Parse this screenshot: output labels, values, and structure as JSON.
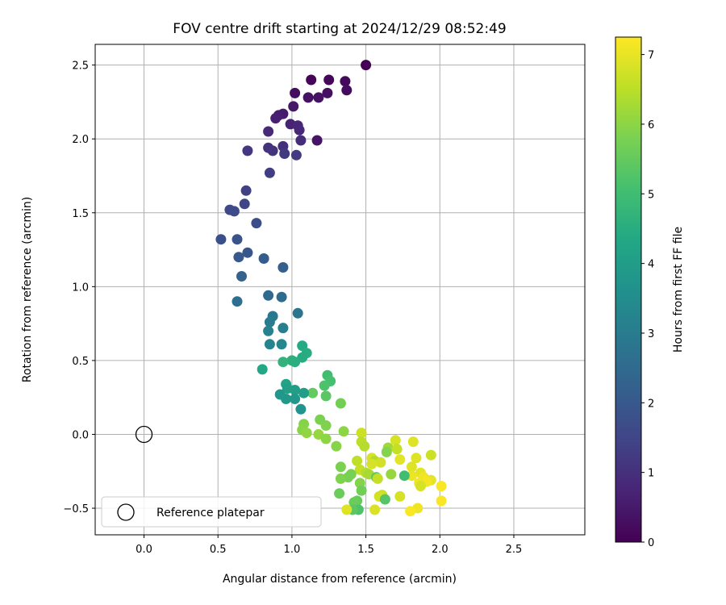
{
  "chart_data": {
    "type": "scatter",
    "title": "FOV centre drift starting at 2024/12/29 08:52:49",
    "xlabel": "Angular distance from reference (arcmin)",
    "ylabel": "Rotation from reference (arcmin)",
    "xlim": [
      -0.33,
      2.98
    ],
    "ylim": [
      -0.68,
      2.64
    ],
    "xticks": [
      0.0,
      0.5,
      1.0,
      1.5,
      2.0,
      2.5
    ],
    "xtick_labels": [
      "0.0",
      "0.5",
      "1.0",
      "1.5",
      "2.0",
      "2.5"
    ],
    "yticks": [
      -0.5,
      0.0,
      0.5,
      1.0,
      1.5,
      2.0,
      2.5
    ],
    "ytick_labels": [
      "−0.5",
      "0.0",
      "0.5",
      "1.0",
      "1.5",
      "2.0",
      "2.5"
    ],
    "grid": true,
    "colormap": "viridis",
    "colorbar": {
      "label": "Hours from first FF file",
      "range": [
        0,
        7.25
      ],
      "ticks": [
        0,
        1,
        2,
        3,
        4,
        5,
        6,
        7
      ],
      "tick_labels": [
        "0",
        "1",
        "2",
        "3",
        "4",
        "5",
        "6",
        "7"
      ]
    },
    "reference": {
      "name": "Reference platepar",
      "x": 0.0,
      "y": 0.0
    },
    "legend": {
      "placement": "lower-left",
      "entries": [
        "Reference platepar"
      ]
    },
    "points": [
      {
        "x": 1.5,
        "y": 2.5,
        "t": 0.0
      },
      {
        "x": 1.13,
        "y": 2.4,
        "t": 0.08
      },
      {
        "x": 1.25,
        "y": 2.4,
        "t": 0.12
      },
      {
        "x": 1.36,
        "y": 2.39,
        "t": 0.16
      },
      {
        "x": 1.37,
        "y": 2.33,
        "t": 0.2
      },
      {
        "x": 1.02,
        "y": 2.31,
        "t": 0.24
      },
      {
        "x": 1.24,
        "y": 2.31,
        "t": 0.28
      },
      {
        "x": 1.11,
        "y": 2.28,
        "t": 0.32
      },
      {
        "x": 1.18,
        "y": 2.28,
        "t": 0.36
      },
      {
        "x": 1.17,
        "y": 1.99,
        "t": 0.4
      },
      {
        "x": 1.01,
        "y": 2.22,
        "t": 0.46
      },
      {
        "x": 0.94,
        "y": 2.17,
        "t": 0.52
      },
      {
        "x": 0.91,
        "y": 2.16,
        "t": 0.58
      },
      {
        "x": 0.89,
        "y": 2.14,
        "t": 0.64
      },
      {
        "x": 0.99,
        "y": 2.1,
        "t": 0.7
      },
      {
        "x": 1.04,
        "y": 2.09,
        "t": 0.76
      },
      {
        "x": 1.05,
        "y": 2.06,
        "t": 0.82
      },
      {
        "x": 0.84,
        "y": 2.05,
        "t": 0.88
      },
      {
        "x": 1.06,
        "y": 1.99,
        "t": 0.94
      },
      {
        "x": 0.94,
        "y": 1.95,
        "t": 1.0
      },
      {
        "x": 0.84,
        "y": 1.94,
        "t": 1.05
      },
      {
        "x": 0.87,
        "y": 1.92,
        "t": 1.1
      },
      {
        "x": 0.7,
        "y": 1.92,
        "t": 1.15
      },
      {
        "x": 0.95,
        "y": 1.9,
        "t": 1.2
      },
      {
        "x": 1.03,
        "y": 1.89,
        "t": 1.25
      },
      {
        "x": 0.85,
        "y": 1.77,
        "t": 1.32
      },
      {
        "x": 0.69,
        "y": 1.65,
        "t": 1.4
      },
      {
        "x": 0.68,
        "y": 1.56,
        "t": 1.48
      },
      {
        "x": 0.58,
        "y": 1.52,
        "t": 1.56
      },
      {
        "x": 0.61,
        "y": 1.51,
        "t": 1.62
      },
      {
        "x": 0.76,
        "y": 1.43,
        "t": 1.7
      },
      {
        "x": 0.52,
        "y": 1.32,
        "t": 1.78
      },
      {
        "x": 0.63,
        "y": 1.32,
        "t": 1.86
      },
      {
        "x": 0.7,
        "y": 1.23,
        "t": 1.94
      },
      {
        "x": 0.64,
        "y": 1.2,
        "t": 2.02
      },
      {
        "x": 0.81,
        "y": 1.19,
        "t": 2.1
      },
      {
        "x": 0.94,
        "y": 1.13,
        "t": 2.22
      },
      {
        "x": 0.66,
        "y": 1.07,
        "t": 2.3
      },
      {
        "x": 0.84,
        "y": 0.94,
        "t": 2.45
      },
      {
        "x": 0.93,
        "y": 0.93,
        "t": 2.52
      },
      {
        "x": 0.63,
        "y": 0.9,
        "t": 2.6
      },
      {
        "x": 1.04,
        "y": 0.82,
        "t": 2.8
      },
      {
        "x": 0.87,
        "y": 0.8,
        "t": 2.9
      },
      {
        "x": 0.85,
        "y": 0.76,
        "t": 3.0
      },
      {
        "x": 0.94,
        "y": 0.72,
        "t": 3.08
      },
      {
        "x": 0.84,
        "y": 0.7,
        "t": 3.15
      },
      {
        "x": 0.85,
        "y": 0.61,
        "t": 3.25
      },
      {
        "x": 0.93,
        "y": 0.61,
        "t": 3.35
      },
      {
        "x": 1.07,
        "y": 0.6,
        "t": 4.4
      },
      {
        "x": 1.1,
        "y": 0.55,
        "t": 4.5
      },
      {
        "x": 1.07,
        "y": 0.52,
        "t": 4.45
      },
      {
        "x": 1.0,
        "y": 0.5,
        "t": 4.6
      },
      {
        "x": 1.02,
        "y": 0.49,
        "t": 4.55
      },
      {
        "x": 0.94,
        "y": 0.49,
        "t": 4.7
      },
      {
        "x": 0.8,
        "y": 0.44,
        "t": 4.35
      },
      {
        "x": 1.24,
        "y": 0.4,
        "t": 5.0
      },
      {
        "x": 1.26,
        "y": 0.36,
        "t": 5.1
      },
      {
        "x": 0.96,
        "y": 0.34,
        "t": 4.2
      },
      {
        "x": 1.22,
        "y": 0.33,
        "t": 5.2
      },
      {
        "x": 0.97,
        "y": 0.31,
        "t": 4.1
      },
      {
        "x": 1.02,
        "y": 0.3,
        "t": 4.05
      },
      {
        "x": 1.14,
        "y": 0.28,
        "t": 5.5
      },
      {
        "x": 1.08,
        "y": 0.28,
        "t": 4.0
      },
      {
        "x": 0.92,
        "y": 0.27,
        "t": 3.8
      },
      {
        "x": 1.23,
        "y": 0.26,
        "t": 5.4
      },
      {
        "x": 0.96,
        "y": 0.24,
        "t": 3.9
      },
      {
        "x": 1.02,
        "y": 0.24,
        "t": 3.85
      },
      {
        "x": 1.33,
        "y": 0.21,
        "t": 5.7
      },
      {
        "x": 1.06,
        "y": 0.17,
        "t": 3.75
      },
      {
        "x": 1.19,
        "y": 0.1,
        "t": 5.8
      },
      {
        "x": 1.08,
        "y": 0.07,
        "t": 5.9
      },
      {
        "x": 1.23,
        "y": 0.06,
        "t": 5.85
      },
      {
        "x": 1.07,
        "y": 0.03,
        "t": 5.95
      },
      {
        "x": 1.35,
        "y": 0.02,
        "t": 6.0
      },
      {
        "x": 1.1,
        "y": 0.01,
        "t": 6.05
      },
      {
        "x": 1.18,
        "y": 0.0,
        "t": 6.1
      },
      {
        "x": 1.47,
        "y": 0.01,
        "t": 6.7
      },
      {
        "x": 1.23,
        "y": -0.03,
        "t": 6.0
      },
      {
        "x": 1.7,
        "y": -0.04,
        "t": 6.8
      },
      {
        "x": 1.82,
        "y": -0.05,
        "t": 6.9
      },
      {
        "x": 1.47,
        "y": -0.05,
        "t": 6.5
      },
      {
        "x": 1.49,
        "y": -0.08,
        "t": 6.45
      },
      {
        "x": 1.3,
        "y": -0.08,
        "t": 5.95
      },
      {
        "x": 1.65,
        "y": -0.09,
        "t": 6.2
      },
      {
        "x": 1.71,
        "y": -0.1,
        "t": 6.6
      },
      {
        "x": 1.64,
        "y": -0.12,
        "t": 5.9
      },
      {
        "x": 1.94,
        "y": -0.14,
        "t": 6.7
      },
      {
        "x": 1.54,
        "y": -0.16,
        "t": 6.85
      },
      {
        "x": 1.84,
        "y": -0.16,
        "t": 6.9
      },
      {
        "x": 1.73,
        "y": -0.17,
        "t": 6.95
      },
      {
        "x": 1.44,
        "y": -0.18,
        "t": 6.55
      },
      {
        "x": 1.56,
        "y": -0.18,
        "t": 6.4
      },
      {
        "x": 1.6,
        "y": -0.19,
        "t": 6.75
      },
      {
        "x": 1.54,
        "y": -0.2,
        "t": 6.8
      },
      {
        "x": 1.33,
        "y": -0.22,
        "t": 5.8
      },
      {
        "x": 1.81,
        "y": -0.22,
        "t": 6.9
      },
      {
        "x": 1.46,
        "y": -0.24,
        "t": 6.6
      },
      {
        "x": 1.5,
        "y": -0.26,
        "t": 6.45
      },
      {
        "x": 1.87,
        "y": -0.26,
        "t": 6.95
      },
      {
        "x": 1.4,
        "y": -0.27,
        "t": 5.8
      },
      {
        "x": 1.52,
        "y": -0.27,
        "t": 6.3
      },
      {
        "x": 1.67,
        "y": -0.27,
        "t": 6.1
      },
      {
        "x": 1.81,
        "y": -0.28,
        "t": 7.05
      },
      {
        "x": 1.76,
        "y": -0.28,
        "t": 5.0
      },
      {
        "x": 1.57,
        "y": -0.29,
        "t": 5.5
      },
      {
        "x": 1.89,
        "y": -0.29,
        "t": 7.1
      },
      {
        "x": 1.38,
        "y": -0.29,
        "t": 5.75
      },
      {
        "x": 1.58,
        "y": -0.3,
        "t": 6.6
      },
      {
        "x": 1.33,
        "y": -0.3,
        "t": 5.85
      },
      {
        "x": 1.94,
        "y": -0.31,
        "t": 7.0
      },
      {
        "x": 1.91,
        "y": -0.32,
        "t": 7.15
      },
      {
        "x": 1.86,
        "y": -0.33,
        "t": 7.1
      },
      {
        "x": 1.46,
        "y": -0.33,
        "t": 5.9
      },
      {
        "x": 1.87,
        "y": -0.35,
        "t": 6.8
      },
      {
        "x": 2.01,
        "y": -0.35,
        "t": 7.2
      },
      {
        "x": 1.32,
        "y": -0.4,
        "t": 5.6
      },
      {
        "x": 1.47,
        "y": -0.38,
        "t": 5.7
      },
      {
        "x": 1.61,
        "y": -0.41,
        "t": 6.7
      },
      {
        "x": 1.59,
        "y": -0.42,
        "t": 6.75
      },
      {
        "x": 1.73,
        "y": -0.42,
        "t": 6.8
      },
      {
        "x": 1.44,
        "y": -0.45,
        "t": 5.55
      },
      {
        "x": 1.42,
        "y": -0.46,
        "t": 5.6
      },
      {
        "x": 1.63,
        "y": -0.44,
        "t": 5.3
      },
      {
        "x": 2.01,
        "y": -0.45,
        "t": 7.2
      },
      {
        "x": 1.45,
        "y": -0.51,
        "t": 5.2
      },
      {
        "x": 1.41,
        "y": -0.51,
        "t": 5.4
      },
      {
        "x": 1.37,
        "y": -0.51,
        "t": 6.9
      },
      {
        "x": 1.56,
        "y": -0.51,
        "t": 6.85
      },
      {
        "x": 1.85,
        "y": -0.5,
        "t": 7.1
      },
      {
        "x": 1.8,
        "y": -0.52,
        "t": 7.2
      }
    ]
  }
}
